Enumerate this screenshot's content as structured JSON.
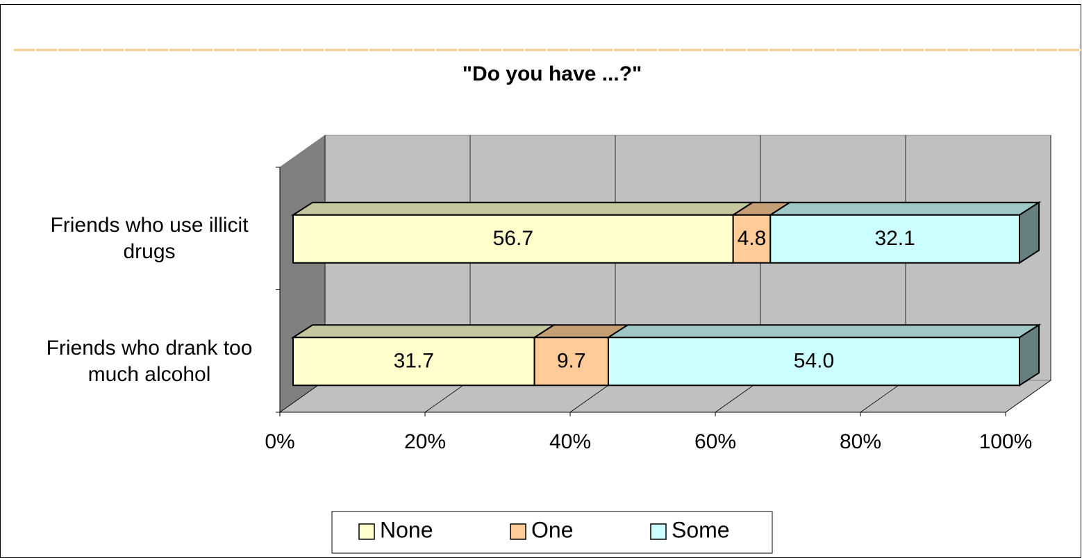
{
  "chart_data": {
    "type": "bar",
    "orientation": "horizontal",
    "stacking": "percent",
    "three_d": true,
    "title": "\"Do you have ...?\"",
    "categories": [
      "Friends who use illicit drugs",
      "Friends who drank too much alcohol"
    ],
    "series": [
      {
        "name": "None",
        "color": "#ffffcc",
        "values": [
          56.7,
          31.7
        ],
        "value_labels": [
          "56.7",
          "31.7"
        ]
      },
      {
        "name": "One",
        "color": "#ffcc99",
        "values": [
          4.8,
          9.7
        ],
        "value_labels": [
          "4.8",
          "9.7"
        ]
      },
      {
        "name": "Some",
        "color": "#ccffff",
        "values": [
          32.1,
          54.0
        ],
        "value_labels": [
          "32.1",
          "54.0"
        ]
      }
    ],
    "xlim": [
      0,
      100
    ],
    "xticks": [
      {
        "value": 0,
        "label": "0%"
      },
      {
        "value": 20,
        "label": "20%"
      },
      {
        "value": 40,
        "label": "40%"
      },
      {
        "value": 60,
        "label": "60%"
      },
      {
        "value": 80,
        "label": "80%"
      },
      {
        "value": 100,
        "label": "100%"
      }
    ],
    "grid": true,
    "legend": "bottom"
  }
}
